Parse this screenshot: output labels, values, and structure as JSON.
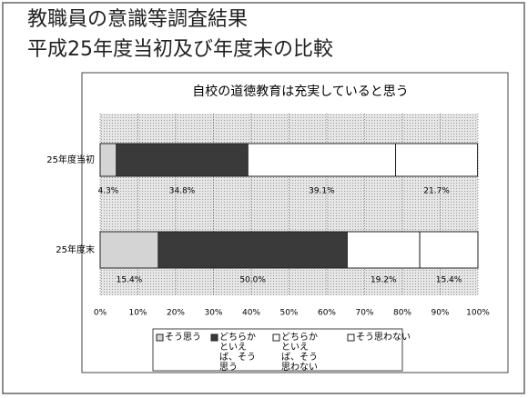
{
  "slide_title": [
    "教職員の意識等調査結果",
    "平成25年度当初及び年度末の比較"
  ],
  "chart_data": {
    "type": "stacked-barh",
    "title": "自校の道徳教育は充実していると思う",
    "categories": [
      "25年度当初",
      "25年度末"
    ],
    "series": [
      {
        "name": "そう思う",
        "color": "#d4d4d4",
        "values": [
          4.3,
          15.4
        ],
        "value_labels": [
          "4.3%",
          "15.4%"
        ]
      },
      {
        "name": "どちらかといえば、そう思う",
        "color": "#3a3a3a",
        "values": [
          34.8,
          50.0
        ],
        "value_labels": [
          "34.8%",
          "50.0%"
        ]
      },
      {
        "name": "どちらかといえば、そう思わない",
        "color": "#ffffff",
        "values": [
          39.1,
          19.2
        ],
        "value_labels": [
          "39.1%",
          "19.2%"
        ]
      },
      {
        "name": "そう思わない",
        "color": "#ffffff",
        "values": [
          21.7,
          15.4
        ],
        "value_labels": [
          "21.7%",
          "15.4%"
        ]
      }
    ],
    "xlim": [
      0,
      100
    ],
    "xticks": [
      {
        "value": 0,
        "label": "0%"
      },
      {
        "value": 10,
        "label": "10%"
      },
      {
        "value": 20,
        "label": "20%"
      },
      {
        "value": 30,
        "label": "30%"
      },
      {
        "value": 40,
        "label": "40%"
      },
      {
        "value": 50,
        "label": "50%"
      },
      {
        "value": 60,
        "label": "60%"
      },
      {
        "value": 70,
        "label": "70%"
      },
      {
        "value": 80,
        "label": "80%"
      },
      {
        "value": 90,
        "label": "90%"
      },
      {
        "value": 100,
        "label": "100%"
      }
    ],
    "grid": true
  }
}
